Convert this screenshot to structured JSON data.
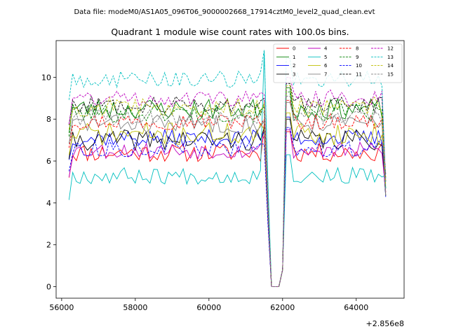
{
  "chart_data": {
    "type": "line",
    "suptitle": "Data file: modeM0/AS1A05_096T06_9000002668_17914cztM0_level2_quad_clean.evt",
    "title": "Quadrant 1 module wise count rates with 100.0s bins.",
    "xlabel": "",
    "ylabel": "",
    "x_offset_label": "+2.856e8",
    "xlim": [
      55850,
      65300
    ],
    "ylim": [
      -0.55,
      11.75
    ],
    "x_ticks": [
      56000,
      58000,
      60000,
      62000,
      64000
    ],
    "x_tick_labels": [
      "56000",
      "58000",
      "60000",
      "62000",
      "64000"
    ],
    "y_ticks": [
      0,
      2,
      4,
      6,
      8,
      10
    ],
    "y_tick_labels": [
      "0",
      "2",
      "4",
      "6",
      "8",
      "10"
    ],
    "legend_position": "top-right",
    "grid": false,
    "time_range": [
      56200,
      64850
    ],
    "bin_seconds": 100,
    "dip_start": 61550,
    "dip_end": 62150,
    "series": [
      {
        "name": "0",
        "color": "#ff0000",
        "dash": "solid",
        "mean": 6.4,
        "amp": 0.45,
        "dipPeak": 7.8,
        "seed": 11
      },
      {
        "name": "1",
        "color": "#008000",
        "dash": "solid",
        "mean": 8.5,
        "amp": 0.5,
        "dipPeak": 8.6,
        "seed": 23
      },
      {
        "name": "2",
        "color": "#0000ff",
        "dash": "solid",
        "mean": 7.1,
        "amp": 0.4,
        "dipPeak": 7.4,
        "seed": 37
      },
      {
        "name": "3",
        "color": "#000000",
        "dash": "solid",
        "mean": 7.0,
        "amp": 0.5,
        "dipPeak": 7.6,
        "seed": 41
      },
      {
        "name": "4",
        "color": "#bf00bf",
        "dash": "solid",
        "mean": 6.5,
        "amp": 0.4,
        "dipPeak": 7.2,
        "seed": 53
      },
      {
        "name": "5",
        "color": "#00bfbf",
        "dash": "solid",
        "mean": 5.3,
        "amp": 0.4,
        "dipPeak": 11.2,
        "seed": 67
      },
      {
        "name": "6",
        "color": "#bfbf00",
        "dash": "solid",
        "mean": 7.3,
        "amp": 0.55,
        "dipPeak": 7.5,
        "seed": 71
      },
      {
        "name": "7",
        "color": "#808080",
        "dash": "solid",
        "mean": 7.8,
        "amp": 0.45,
        "dipPeak": 7.9,
        "seed": 83
      },
      {
        "name": "8",
        "color": "#ff0000",
        "dash": "dashed",
        "mean": 7.9,
        "amp": 0.4,
        "dipPeak": 8.0,
        "seed": 97
      },
      {
        "name": "9",
        "color": "#008000",
        "dash": "dashed",
        "mean": 8.3,
        "amp": 0.45,
        "dipPeak": 8.8,
        "seed": 101
      },
      {
        "name": "10",
        "color": "#0000ff",
        "dash": "dashed",
        "mean": 6.6,
        "amp": 0.4,
        "dipPeak": 6.8,
        "seed": 113
      },
      {
        "name": "11",
        "color": "#000000",
        "dash": "dashed",
        "mean": 8.7,
        "amp": 0.4,
        "dipPeak": 9.0,
        "seed": 127
      },
      {
        "name": "12",
        "color": "#bf00bf",
        "dash": "dashed",
        "mean": 9.0,
        "amp": 0.4,
        "dipPeak": 9.2,
        "seed": 131
      },
      {
        "name": "13",
        "color": "#00bfbf",
        "dash": "dashed",
        "mean": 9.9,
        "amp": 0.4,
        "dipPeak": 11.3,
        "seed": 149
      },
      {
        "name": "14",
        "color": "#bfbf00",
        "dash": "dashed",
        "mean": 8.6,
        "amp": 0.45,
        "dipPeak": 8.8,
        "seed": 157
      },
      {
        "name": "15",
        "color": "#808080",
        "dash": "dashed",
        "mean": 8.1,
        "amp": 0.4,
        "dipPeak": 8.3,
        "seed": 163
      }
    ]
  }
}
